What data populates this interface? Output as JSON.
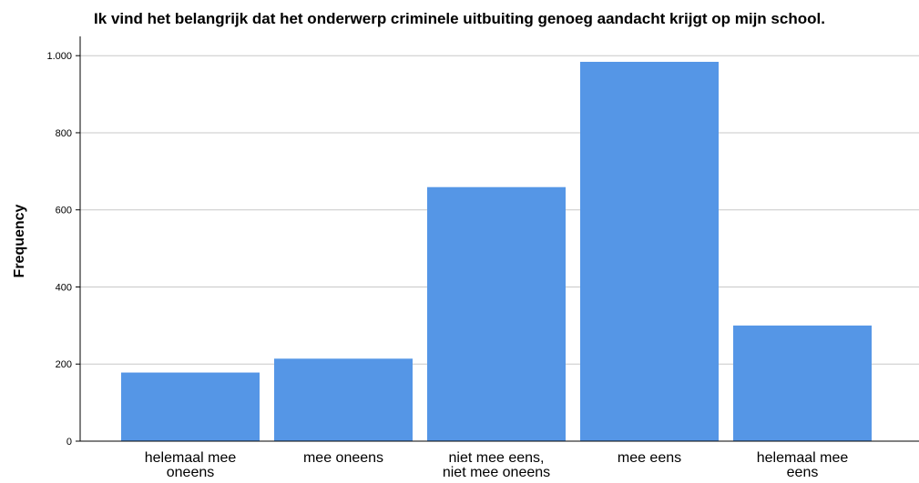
{
  "chart_data": {
    "type": "bar",
    "title": "Ik vind het belangrijk dat het onderwerp criminele uitbuiting genoeg aandacht krijgt op mijn school.",
    "xlabel": "",
    "ylabel": "Frequency",
    "categories": [
      [
        "helemaal mee",
        "oneens"
      ],
      [
        "mee oneens"
      ],
      [
        "niet mee eens,",
        "niet mee oneens"
      ],
      [
        "mee eens"
      ],
      [
        "helemaal mee",
        "eens"
      ]
    ],
    "values": [
      178,
      214,
      659,
      984,
      300
    ],
    "ylim": [
      0,
      1050
    ],
    "yticks": [
      0,
      200,
      400,
      600,
      800,
      1000
    ],
    "ytick_labels": [
      "0",
      "200",
      "400",
      "600",
      "800",
      "1.000"
    ],
    "grid": true,
    "bar_color": "#5596e6",
    "grid_color": "#c8c8c8"
  }
}
